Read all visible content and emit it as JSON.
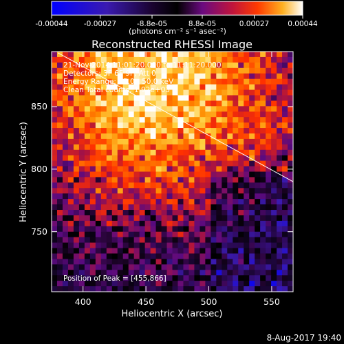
{
  "colorbar": {
    "tick_labels": [
      "-0.00044",
      "-0.00027",
      "-8.8e-05",
      "8.8e-05",
      "0.00027",
      "0.00044"
    ],
    "tick_values": [
      -0.00044,
      -0.00027,
      -8.8e-05,
      8.8e-05,
      0.00027,
      0.00044
    ],
    "range": [
      -0.00044,
      0.00044
    ],
    "units_label": "(photons cm⁻² s⁻¹ asec⁻²)"
  },
  "chart_data": {
    "type": "heatmap",
    "title": "Reconstructed RHESSI Image",
    "xlabel": "Heliocentric X (arcsec)",
    "ylabel": "Heliocentric Y (arcsec)",
    "xlim": [
      375,
      567
    ],
    "ylim": [
      702,
      894
    ],
    "x_ticks": [
      400,
      450,
      500,
      550
    ],
    "y_ticks": [
      750,
      800,
      850
    ],
    "annotations": [
      "21-Nov-2014 11:01:20.000 to 11:11:20.000",
      "Detectors: 3F 6F 9F, Att 0",
      "Energy Range: 25.0 - 50.0 keV",
      "Clean    Total counts: 1.92e+03"
    ],
    "peak_label": "Position of Peak = [455,866]",
    "peak": [
      455,
      866
    ],
    "limb_line": {
      "from": [
        380,
        893
      ],
      "to": [
        567,
        790
      ]
    },
    "colormap": [
      "#0000ff",
      "#3a1ab0",
      "#300a60",
      "#000000",
      "#5a0a80",
      "#b0143c",
      "#ff3000",
      "#ff8a00",
      "#ffd040",
      "#ffffff"
    ],
    "grid": false
  },
  "footer": {
    "timestamp": "8-Aug-2017 19:40"
  }
}
